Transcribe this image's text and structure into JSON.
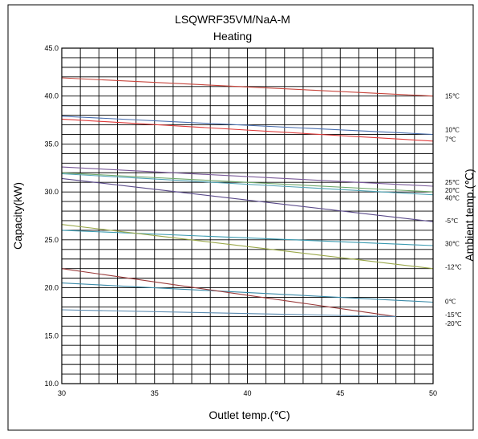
{
  "chart_data": {
    "type": "line",
    "title": "LSQWRF35VM/NaA-M",
    "subtitle": "Heating",
    "xlabel": "Outlet temp.(℃)",
    "ylabel": "Capacity(kW)",
    "right_label": "Ambient temp.(℃)",
    "xlim": [
      30,
      50
    ],
    "ylim": [
      10,
      45
    ],
    "x_ticks": [
      "30",
      "35",
      "40",
      "45",
      "50"
    ],
    "y_ticks": [
      "10.0",
      "15.0",
      "20.0",
      "25.0",
      "30.0",
      "35.0",
      "40.0",
      "45.0"
    ],
    "grid": true,
    "series": [
      {
        "name": "15℃",
        "color": "#c8453c",
        "x": [
          30,
          50
        ],
        "values": [
          41.9,
          40.0
        ]
      },
      {
        "name": "10℃",
        "color": "#4a6fb0",
        "x": [
          30,
          50
        ],
        "values": [
          37.9,
          36.0
        ]
      },
      {
        "name": "7℃",
        "color": "#e03a3a",
        "x": [
          30,
          50
        ],
        "values": [
          37.6,
          35.3
        ]
      },
      {
        "name": "25℃",
        "color": "#7a5a9a",
        "x": [
          30,
          50
        ],
        "values": [
          32.6,
          30.6
        ]
      },
      {
        "name": "20℃",
        "color": "#6fa86a",
        "x": [
          30,
          50
        ],
        "values": [
          32.0,
          30.0
        ]
      },
      {
        "name": "40℃",
        "color": "#4fa3b5",
        "x": [
          30,
          50
        ],
        "values": [
          31.9,
          29.7
        ]
      },
      {
        "name": "-5℃",
        "color": "#5a4a8a",
        "x": [
          30,
          50
        ],
        "values": [
          31.4,
          26.9
        ]
      },
      {
        "name": "30℃",
        "color": "#3a9ab0",
        "x": [
          30,
          50
        ],
        "values": [
          26.0,
          24.4
        ]
      },
      {
        "name": "-12℃",
        "color": "#9aa84a",
        "x": [
          30,
          50
        ],
        "values": [
          26.6,
          22.0
        ]
      },
      {
        "name": "0℃",
        "color": "#3a8aa8",
        "x": [
          30,
          50
        ],
        "values": [
          20.5,
          18.5
        ]
      },
      {
        "name": "-15℃",
        "color": "#9a3a3a",
        "x": [
          30,
          48
        ],
        "values": [
          22.0,
          17.0
        ]
      },
      {
        "name": "-20℃",
        "color": "#5a8ab0",
        "x": [
          30,
          48
        ],
        "values": [
          17.7,
          17.0
        ]
      }
    ],
    "series_label_values": [
      40.0,
      36.5,
      35.5,
      31.0,
      30.2,
      29.4,
      27.0,
      24.6,
      22.2,
      18.6,
      17.2,
      16.3
    ]
  }
}
